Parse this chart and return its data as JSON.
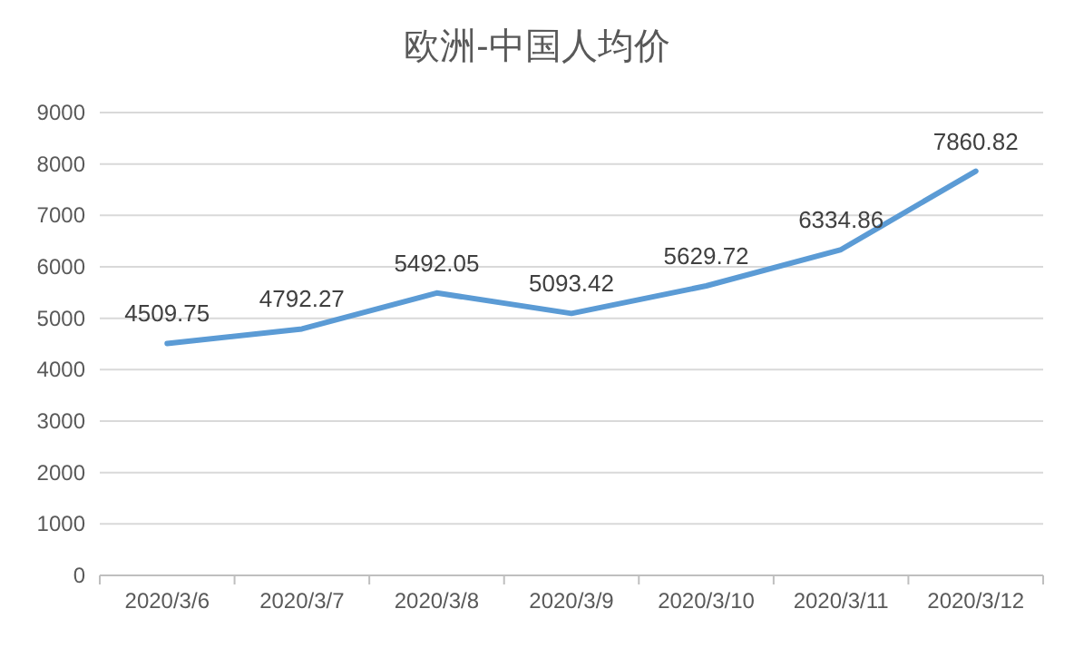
{
  "chart_data": {
    "type": "line",
    "title": "欧洲-中国人均价",
    "categories": [
      "2020/3/6",
      "2020/3/7",
      "2020/3/8",
      "2020/3/9",
      "2020/3/10",
      "2020/3/11",
      "2020/3/12"
    ],
    "series": [
      {
        "color": "#5b9bd5",
        "values": [
          4509.75,
          4792.27,
          5492.05,
          5093.42,
          5629.72,
          6334.86,
          7860.82
        ]
      }
    ],
    "ylim": [
      0,
      9000
    ],
    "yticks": [
      0,
      1000,
      2000,
      3000,
      4000,
      5000,
      6000,
      7000,
      8000,
      9000
    ],
    "grid": "y",
    "data_labels": true
  }
}
